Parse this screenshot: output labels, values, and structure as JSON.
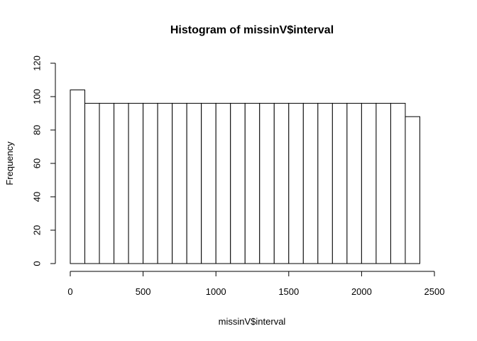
{
  "chart_data": {
    "type": "bar",
    "title": "Histogram of missinV$interval",
    "xlabel": "missinV$interval",
    "ylabel": "Frequency",
    "bin_width": 100,
    "bins": [
      {
        "start": 0,
        "end": 100,
        "count": 104
      },
      {
        "start": 100,
        "end": 200,
        "count": 96
      },
      {
        "start": 200,
        "end": 300,
        "count": 96
      },
      {
        "start": 300,
        "end": 400,
        "count": 96
      },
      {
        "start": 400,
        "end": 500,
        "count": 96
      },
      {
        "start": 500,
        "end": 600,
        "count": 96
      },
      {
        "start": 600,
        "end": 700,
        "count": 96
      },
      {
        "start": 700,
        "end": 800,
        "count": 96
      },
      {
        "start": 800,
        "end": 900,
        "count": 96
      },
      {
        "start": 900,
        "end": 1000,
        "count": 96
      },
      {
        "start": 1000,
        "end": 1100,
        "count": 96
      },
      {
        "start": 1100,
        "end": 1200,
        "count": 96
      },
      {
        "start": 1200,
        "end": 1300,
        "count": 96
      },
      {
        "start": 1300,
        "end": 1400,
        "count": 96
      },
      {
        "start": 1400,
        "end": 1500,
        "count": 96
      },
      {
        "start": 1500,
        "end": 1600,
        "count": 96
      },
      {
        "start": 1600,
        "end": 1700,
        "count": 96
      },
      {
        "start": 1700,
        "end": 1800,
        "count": 96
      },
      {
        "start": 1800,
        "end": 1900,
        "count": 96
      },
      {
        "start": 1900,
        "end": 2000,
        "count": 96
      },
      {
        "start": 2000,
        "end": 2100,
        "count": 96
      },
      {
        "start": 2100,
        "end": 2200,
        "count": 96
      },
      {
        "start": 2200,
        "end": 2300,
        "count": 96
      },
      {
        "start": 2300,
        "end": 2400,
        "count": 88
      }
    ],
    "xlim": [
      0,
      2500
    ],
    "ylim": [
      0,
      120
    ],
    "xticks": [
      0,
      500,
      1000,
      1500,
      2000,
      2500
    ],
    "yticks": [
      0,
      20,
      40,
      60,
      80,
      100,
      120
    ],
    "grid": false,
    "legend": "none",
    "bar_fill": "#ffffff",
    "bar_stroke": "#000000"
  }
}
